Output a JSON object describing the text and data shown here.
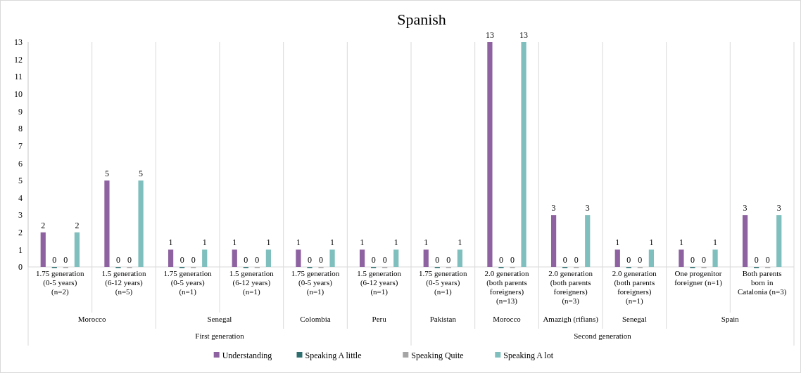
{
  "chart_data": {
    "type": "bar",
    "title": "Spanish",
    "categories": [
      "1.75 generation (0-5 years) (n=2)",
      "1.5 generation (6-12 years) (n=5)",
      "1.75 generation (0-5 years) (n=1)",
      "1.5 generation (6-12 years) (n=1)",
      "1.75 generation (0-5 years) (n=1)",
      "1.5 generation (6-12 years) (n=1)",
      "1.75 generation (0-5 years) (n=1)",
      "2.0 generation (both parents foreigners) (n=13)",
      "2.0 generation (both parents foreigners) (n=3)",
      "2.0 generation (both parents foreigners) (n=1)",
      "One progenitor foreigner (n=1)",
      "Both parents born in Catalonia (n=3)"
    ],
    "series": [
      {
        "name": "Understanding",
        "color": "#8e62a0",
        "values": [
          2,
          5,
          1,
          1,
          1,
          1,
          1,
          13,
          3,
          1,
          1,
          3
        ]
      },
      {
        "name": "Speaking  A little",
        "color": "#2f6e6e",
        "values": [
          0,
          0,
          0,
          0,
          0,
          0,
          0,
          0,
          0,
          0,
          0,
          0
        ]
      },
      {
        "name": "Speaking  Quite",
        "color": "#a5a5a5",
        "values": [
          0,
          0,
          0,
          0,
          0,
          0,
          0,
          0,
          0,
          0,
          0,
          0
        ]
      },
      {
        "name": "Speaking  A lot",
        "color": "#7fbfbd",
        "values": [
          2,
          5,
          1,
          1,
          1,
          1,
          1,
          13,
          3,
          1,
          1,
          3
        ]
      }
    ],
    "annotations": [
      "Morocco",
      "Senegal",
      "Colombia",
      "Peru",
      "Pakistan",
      "Morocco",
      "Amazigh (rifians)",
      "Senegal",
      "Spain",
      "First generation",
      "Second generation"
    ],
    "ylim": [
      0,
      13
    ],
    "yticks": [
      0,
      1,
      2,
      3,
      4,
      5,
      6,
      7,
      8,
      9,
      10,
      11,
      12,
      13
    ],
    "data_labels": true,
    "grid": false,
    "legend": "bottom"
  }
}
